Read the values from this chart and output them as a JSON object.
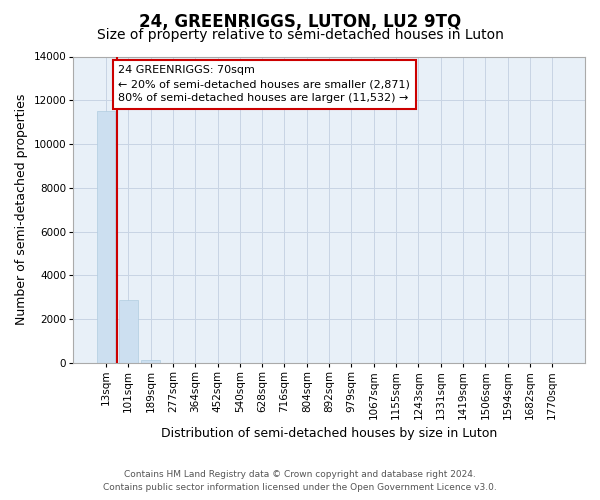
{
  "title": "24, GREENRIGGS, LUTON, LU2 9TQ",
  "subtitle": "Size of property relative to semi-detached houses in Luton",
  "xlabel": "Distribution of semi-detached houses by size in Luton",
  "ylabel": "Number of semi-detached properties",
  "bar_labels": [
    "13sqm",
    "101sqm",
    "189sqm",
    "277sqm",
    "364sqm",
    "452sqm",
    "540sqm",
    "628sqm",
    "716sqm",
    "804sqm",
    "892sqm",
    "979sqm",
    "1067sqm",
    "1155sqm",
    "1243sqm",
    "1331sqm",
    "1419sqm",
    "1506sqm",
    "1594sqm",
    "1682sqm",
    "1770sqm"
  ],
  "bar_values": [
    11532,
    2871,
    150,
    0,
    0,
    0,
    0,
    0,
    0,
    0,
    0,
    0,
    0,
    0,
    0,
    0,
    0,
    0,
    0,
    0,
    0
  ],
  "bar_color": "#ccdff0",
  "bar_edge_color": "#b0cce0",
  "marker_line_color": "#cc0000",
  "annotation_text": "24 GREENRIGGS: 70sqm\n← 20% of semi-detached houses are smaller (2,871)\n80% of semi-detached houses are larger (11,532) →",
  "annotation_box_color": "#ffffff",
  "annotation_box_edge": "#cc0000",
  "ylim": [
    0,
    14000
  ],
  "yticks": [
    0,
    2000,
    4000,
    6000,
    8000,
    10000,
    12000,
    14000
  ],
  "footer_line1": "Contains HM Land Registry data © Crown copyright and database right 2024.",
  "footer_line2": "Contains public sector information licensed under the Open Government Licence v3.0.",
  "bg_color": "#ffffff",
  "plot_bg_color": "#e8f0f8",
  "grid_color": "#c8d4e4",
  "title_fontsize": 12,
  "subtitle_fontsize": 10,
  "axis_label_fontsize": 9,
  "tick_fontsize": 7.5,
  "annotation_fontsize": 8,
  "footer_fontsize": 6.5
}
